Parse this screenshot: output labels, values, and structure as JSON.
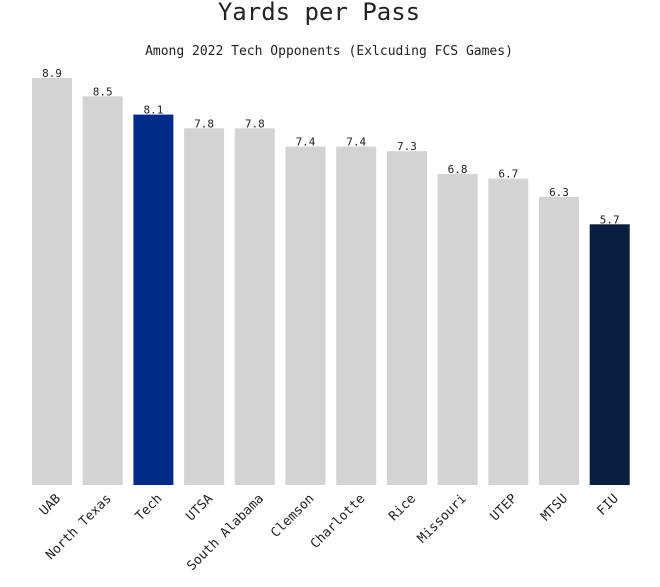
{
  "chart_data": {
    "type": "bar",
    "title": "Yards per Pass",
    "subtitle": "Among 2022 Tech Opponents (Exlcuding FCS Games)",
    "xlabel": "",
    "ylabel": "",
    "ylim": [
      0,
      8.9
    ],
    "grid": false,
    "categories": [
      "UAB",
      "North Texas",
      "Tech",
      "UTSA",
      "South Alabama",
      "Clemson",
      "Charlotte",
      "Rice",
      "Missouri",
      "UTEP",
      "MTSU",
      "FIU"
    ],
    "values": [
      8.9,
      8.5,
      8.1,
      7.8,
      7.8,
      7.4,
      7.4,
      7.3,
      6.8,
      6.7,
      6.3,
      5.7
    ],
    "value_labels": [
      "8.9",
      "8.5",
      "8.1",
      "7.8",
      "7.8",
      "7.4",
      "7.4",
      "7.3",
      "6.8",
      "6.7",
      "6.3",
      "5.7"
    ],
    "bar_colors": [
      "#d3d3d3",
      "#d3d3d3",
      "#002b89",
      "#d3d3d3",
      "#d3d3d3",
      "#d3d3d3",
      "#d3d3d3",
      "#d3d3d3",
      "#d3d3d3",
      "#d3d3d3",
      "#d3d3d3",
      "#0a1e3f"
    ]
  }
}
